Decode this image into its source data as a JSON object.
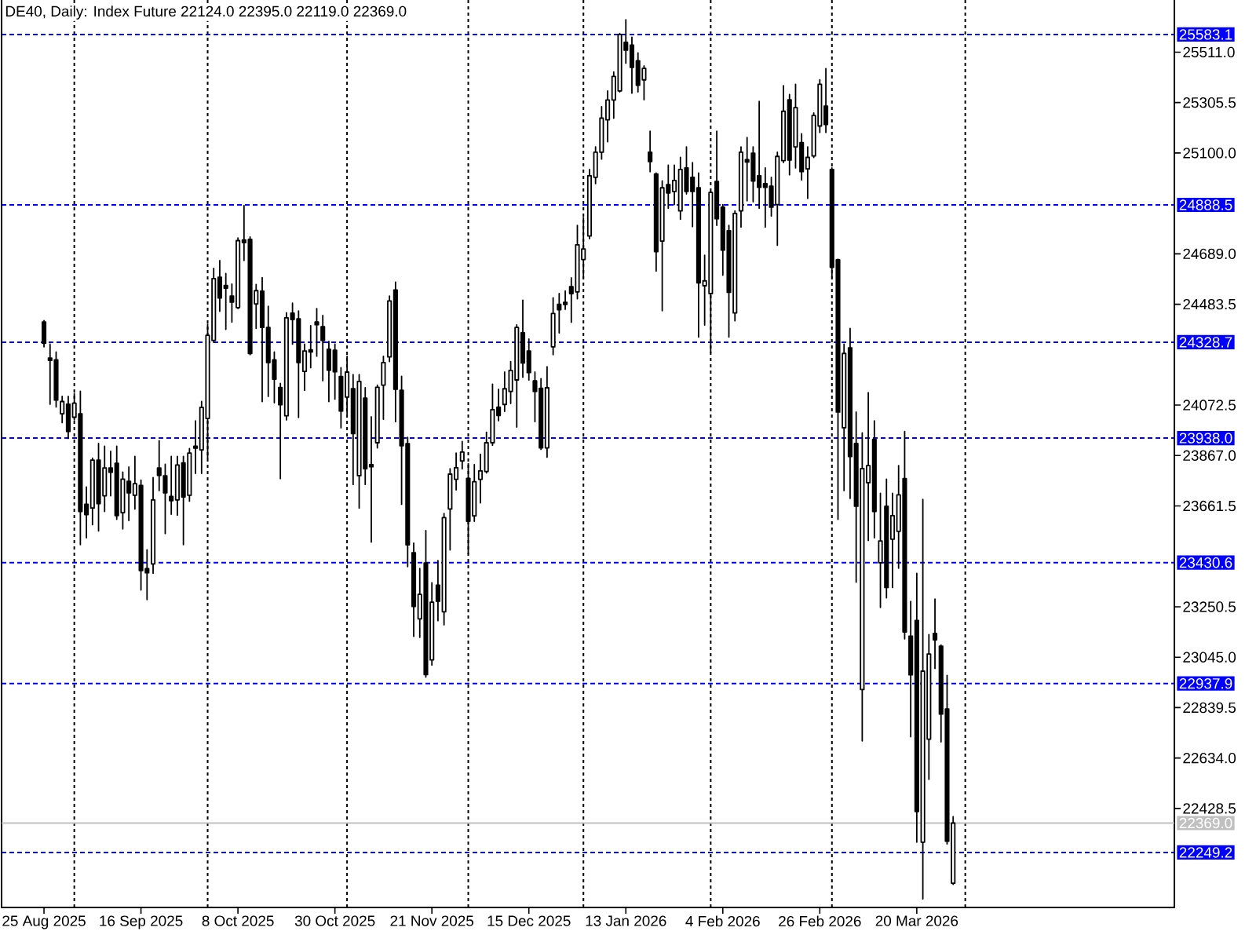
{
  "chart_data": {
    "type": "candlestick",
    "title": "DE40, Daily: Index Future 22124.0 22395.0 22119.0 22369.0",
    "color": "#000000",
    "categories": [
      "25 Aug 2025",
      null,
      null,
      null,
      null,
      null,
      null,
      null,
      null,
      null,
      null,
      null,
      null,
      null,
      null,
      null,
      "16 Sep 2025",
      null,
      null,
      null,
      null,
      null,
      null,
      null,
      null,
      null,
      null,
      null,
      null,
      null,
      null,
      null,
      "8 Oct 2025",
      null,
      null,
      null,
      null,
      null,
      null,
      null,
      null,
      null,
      null,
      null,
      null,
      null,
      null,
      null,
      "30 Oct 2025",
      null,
      null,
      null,
      null,
      null,
      null,
      null,
      null,
      null,
      null,
      null,
      null,
      null,
      null,
      null,
      "21 Nov 2025",
      null,
      null,
      null,
      null,
      null,
      null,
      null,
      null,
      null,
      null,
      null,
      null,
      null,
      null,
      null,
      "15 Dec 2025",
      null,
      null,
      null,
      null,
      null,
      null,
      null,
      null,
      null,
      null,
      null,
      null,
      null,
      null,
      null,
      "13 Jan 2026",
      null,
      null,
      null,
      null,
      null,
      null,
      null,
      null,
      null,
      null,
      null,
      null,
      null,
      null,
      null,
      "4 Feb 2026",
      null,
      null,
      null,
      null,
      null,
      null,
      null,
      null,
      null,
      null,
      null,
      null,
      null,
      null,
      null,
      "26 Feb 2026",
      null,
      null,
      null,
      null,
      null,
      null,
      null,
      null,
      null,
      null,
      null,
      null,
      null,
      null,
      null,
      "20 Mar 2026",
      null,
      null,
      null,
      null,
      null,
      null,
      null,
      null,
      null,
      null,
      null,
      null,
      null,
      null,
      null,
      null,
      null,
      null,
      null,
      null,
      null,
      null,
      null,
      null,
      null,
      null,
      null,
      null,
      null,
      null,
      null,
      null,
      null,
      null,
      null,
      null,
      null,
      null,
      null,
      null,
      null,
      null
    ],
    "ohlc": [
      [
        24411,
        24417,
        24310,
        24325
      ],
      [
        24264,
        24321,
        24076,
        24255
      ],
      [
        24257,
        24289,
        24065,
        24093
      ],
      [
        24037,
        24108,
        24001,
        24087
      ],
      [
        24076,
        24108,
        23937,
        23965
      ],
      [
        24023,
        24119,
        24012,
        24080
      ],
      [
        24037,
        24129,
        23504,
        23639
      ],
      [
        23668,
        23739,
        23532,
        23626
      ],
      [
        23653,
        23856,
        23585,
        23848
      ],
      [
        23848,
        23916,
        23560,
        23671
      ],
      [
        23703,
        23905,
        23639,
        23816
      ],
      [
        23816,
        23884,
        23703,
        23799
      ],
      [
        23835,
        23905,
        23607,
        23622
      ],
      [
        23634,
        23799,
        23568,
        23771
      ],
      [
        23762,
        23820,
        23602,
        23715
      ],
      [
        23705,
        23863,
        23649,
        23752
      ],
      [
        23745,
        23767,
        23319,
        23398
      ],
      [
        23406,
        23483,
        23280,
        23389
      ],
      [
        23425,
        23777,
        23387,
        23686
      ],
      [
        23816,
        23927,
        23724,
        23786
      ],
      [
        23784,
        23831,
        23549,
        23715
      ],
      [
        23700,
        23863,
        23628,
        23683
      ],
      [
        23686,
        23863,
        23624,
        23828
      ],
      [
        23837,
        23863,
        23504,
        23698
      ],
      [
        23705,
        23895,
        23681,
        23877
      ],
      [
        23905,
        24008,
        23794,
        23897
      ],
      [
        23890,
        24087,
        23794,
        24063
      ],
      [
        24018,
        24402,
        23856,
        24357
      ],
      [
        24336,
        24630,
        24328,
        24588
      ],
      [
        24594,
        24662,
        24455,
        24509
      ],
      [
        24560,
        24609,
        24381,
        24549
      ],
      [
        24517,
        24566,
        24411,
        24492
      ],
      [
        24470,
        24754,
        24466,
        24743
      ],
      [
        24746,
        24886,
        24662,
        24735
      ],
      [
        24748,
        24758,
        24278,
        24283
      ],
      [
        24485,
        24564,
        24385,
        24539
      ],
      [
        24537,
        24592,
        24087,
        24389
      ],
      [
        24389,
        24475,
        24108,
        24246
      ],
      [
        24257,
        24289,
        24082,
        24178
      ],
      [
        24144,
        24161,
        23773,
        24074
      ],
      [
        24029,
        24449,
        24012,
        24428
      ],
      [
        24447,
        24488,
        24321,
        24421
      ],
      [
        24424,
        24456,
        24022,
        24246
      ],
      [
        24210,
        24321,
        24133,
        24293
      ],
      [
        24298,
        24396,
        24225,
        24289
      ],
      [
        24411,
        24466,
        24272,
        24400
      ],
      [
        24392,
        24438,
        24172,
        24336
      ],
      [
        24300,
        24332,
        24087,
        24215
      ],
      [
        24296,
        24321,
        24097,
        24208
      ],
      [
        24189,
        24225,
        23980,
        24048
      ],
      [
        24105,
        24271,
        24037,
        24207
      ],
      [
        24139,
        24197,
        23749,
        23956
      ],
      [
        23785,
        24197,
        23653,
        24169
      ],
      [
        24101,
        24143,
        23749,
        23813
      ],
      [
        23830,
        24025,
        23514,
        23821
      ],
      [
        23919,
        24154,
        23898,
        24145
      ],
      [
        24154,
        24271,
        24015,
        24246
      ],
      [
        24269,
        24517,
        24250,
        24497
      ],
      [
        24542,
        24574,
        24005,
        24137
      ],
      [
        24133,
        24190,
        23668,
        23907
      ],
      [
        23915,
        23941,
        23414,
        23503
      ],
      [
        23471,
        23510,
        23130,
        23252
      ],
      [
        23201,
        23407,
        23126,
        23301
      ],
      [
        23429,
        23561,
        22964,
        22974
      ],
      [
        23034,
        23348,
        23013,
        23269
      ],
      [
        23339,
        23439,
        23194,
        23273
      ],
      [
        23230,
        23631,
        23177,
        23614
      ],
      [
        23649,
        23813,
        23482,
        23791
      ],
      [
        23770,
        23877,
        23727,
        23817
      ],
      [
        23845,
        23924,
        23813,
        23881
      ],
      [
        23774,
        23834,
        23467,
        23599
      ],
      [
        23621,
        23830,
        23599,
        23760
      ],
      [
        23770,
        23872,
        23674,
        23804
      ],
      [
        23802,
        23962,
        23796,
        23919
      ],
      [
        23919,
        24158,
        23909,
        24054
      ],
      [
        24064,
        24137,
        24009,
        24030
      ],
      [
        24075,
        24207,
        24047,
        24139
      ],
      [
        24128,
        24250,
        24079,
        24214
      ],
      [
        24175,
        24399,
        23983,
        24389
      ],
      [
        24367,
        24500,
        24186,
        24244
      ],
      [
        24293,
        24342,
        24175,
        24205
      ],
      [
        24171,
        24207,
        24005,
        24128
      ],
      [
        24141,
        24180,
        23892,
        23898
      ],
      [
        23898,
        24229,
        23860,
        24143
      ],
      [
        24310,
        24510,
        24278,
        24446
      ],
      [
        24483,
        24527,
        24367,
        24461
      ],
      [
        24491,
        24538,
        24463,
        24483
      ],
      [
        24555,
        24591,
        24410,
        24527
      ],
      [
        24534,
        24805,
        24506,
        24726
      ],
      [
        24666,
        24837,
        24591,
        24709
      ],
      [
        24762,
        25033,
        24751,
        25007
      ],
      [
        25001,
        25125,
        24975,
        25103
      ],
      [
        25103,
        25289,
        25075,
        25242
      ],
      [
        25235,
        25353,
        25146,
        25316
      ],
      [
        25316,
        25430,
        25242,
        25412
      ],
      [
        25353,
        25587,
        25349,
        25583
      ],
      [
        25551,
        25643,
        25466,
        25519
      ],
      [
        25540,
        25572,
        25344,
        25449
      ],
      [
        25476,
        25508,
        25349,
        25376
      ],
      [
        25398,
        25455,
        25317,
        25445
      ],
      [
        25103,
        25189,
        25024,
        25065
      ],
      [
        25014,
        25018,
        24619,
        24698
      ],
      [
        24741,
        24986,
        24457,
        24958
      ],
      [
        24971,
        25050,
        24875,
        24937
      ],
      [
        24943,
        25050,
        24890,
        24988
      ],
      [
        24864,
        25082,
        24830,
        25033
      ],
      [
        25039,
        25125,
        24933,
        24943
      ],
      [
        25001,
        25061,
        24800,
        24943
      ],
      [
        24958,
        25018,
        24350,
        24571
      ],
      [
        24559,
        24683,
        24399,
        24579
      ],
      [
        24527,
        24943,
        24286,
        24939
      ],
      [
        24984,
        25189,
        24805,
        24832
      ],
      [
        24879,
        24890,
        24602,
        24704
      ],
      [
        24783,
        24805,
        24350,
        24532
      ],
      [
        24448,
        24864,
        24416,
        24854
      ],
      [
        24864,
        25125,
        24798,
        25103
      ],
      [
        25073,
        25163,
        24905,
        25063
      ],
      [
        25099,
        25125,
        24901,
        24986
      ],
      [
        25007,
        25310,
        24875,
        24960
      ],
      [
        24975,
        25039,
        24798,
        24960
      ],
      [
        24965,
        25001,
        24843,
        24879
      ],
      [
        24890,
        25103,
        24724,
        25086
      ],
      [
        25069,
        25374,
        25061,
        25270
      ],
      [
        25317,
        25338,
        25011,
        25071
      ],
      [
        25125,
        25380,
        25039,
        25285
      ],
      [
        25142,
        25178,
        24990,
        25024
      ],
      [
        25035,
        25125,
        24915,
        25082
      ],
      [
        25088,
        25263,
        25082,
        25253
      ],
      [
        25210,
        25398,
        25184,
        25380
      ],
      [
        25291,
        25444,
        25184,
        25216
      ],
      [
        25033,
        25039,
        24591,
        24634
      ],
      [
        24665,
        24667,
        23607,
        24044
      ],
      [
        23980,
        24321,
        23724,
        24283
      ],
      [
        24306,
        24385,
        23692,
        23863
      ],
      [
        23916,
        24044,
        23351,
        23660
      ],
      [
        22913,
        23959,
        22704,
        23814
      ],
      [
        23756,
        24123,
        23521,
        23826
      ],
      [
        23933,
        24008,
        23532,
        23639
      ],
      [
        23430,
        23713,
        23248,
        23519
      ],
      [
        23660,
        23771,
        23287,
        23329
      ],
      [
        23526,
        23713,
        23329,
        23622
      ],
      [
        23558,
        23826,
        23408,
        23707
      ],
      [
        23773,
        23965,
        23120,
        23148
      ],
      [
        23131,
        23272,
        22721,
        22973
      ],
      [
        23195,
        23387,
        22291,
        22416
      ],
      [
        22291,
        23688,
        22060,
        22988
      ],
      [
        22711,
        23137,
        22547,
        23058
      ],
      [
        23142,
        23282,
        22999,
        23116
      ],
      [
        23090,
        23095,
        22700,
        22813
      ],
      [
        22834,
        22971,
        22284,
        22295
      ],
      [
        22124.0,
        22395.0,
        22119.0,
        22369.0
      ],
      null,
      null,
      null,
      null,
      null,
      null,
      null,
      null,
      null,
      null,
      null,
      null,
      null,
      null,
      null,
      null,
      null,
      null,
      null,
      null,
      null,
      null,
      null,
      null,
      null,
      null,
      null,
      null,
      null,
      null,
      null,
      null,
      null,
      null,
      null,
      null
    ],
    "ylim": [
      22025,
      25730
    ],
    "yticks": [
      {
        "value": 22428.5,
        "label": "22428.5"
      },
      {
        "value": 22634.0,
        "label": "22634.0"
      },
      {
        "value": 22839.5,
        "label": "22839.5"
      },
      {
        "value": 23045.0,
        "label": "23045.0"
      },
      {
        "value": 23250.5,
        "label": "23250.5"
      },
      {
        "value": 23661.5,
        "label": "23661.5"
      },
      {
        "value": 23867.0,
        "label": "23867.0"
      },
      {
        "value": 24072.5,
        "label": "24072.5"
      },
      {
        "value": 24483.5,
        "label": "24483.5"
      },
      {
        "value": 24689.0,
        "label": "24689.0"
      },
      {
        "value": 25100.0,
        "label": "25100.0"
      },
      {
        "value": 25305.5,
        "label": "25305.5"
      },
      {
        "value": 25511.0,
        "label": "25511.0"
      }
    ],
    "ref_lines": [
      {
        "axis": "y",
        "value": 25583.1,
        "label": "25583.1",
        "color": "#0000ff",
        "line_style": "dashed"
      },
      {
        "axis": "y",
        "value": 24888.5,
        "label": "24888.5",
        "color": "#0000ff",
        "line_style": "dashed"
      },
      {
        "axis": "y",
        "value": 24328.7,
        "label": "24328.7",
        "color": "#0000ff",
        "line_style": "dashed"
      },
      {
        "axis": "y",
        "value": 23938.0,
        "label": "23938.0",
        "color": "#0000ff",
        "line_style": "dashed"
      },
      {
        "axis": "y",
        "value": 23430.6,
        "label": "23430.6",
        "color": "#0000ff",
        "line_style": "dashed"
      },
      {
        "axis": "y",
        "value": 22937.9,
        "label": "22937.9",
        "color": "#0000ff",
        "line_style": "dashed"
      },
      {
        "axis": "y",
        "value": 22369.0,
        "label": "22369.0",
        "color": "#c0c0c0",
        "line_style": "solid"
      },
      {
        "axis": "y",
        "value": 22249.2,
        "label": "22249.2",
        "color": "#0000ff",
        "line_style": "dashed"
      }
    ]
  }
}
